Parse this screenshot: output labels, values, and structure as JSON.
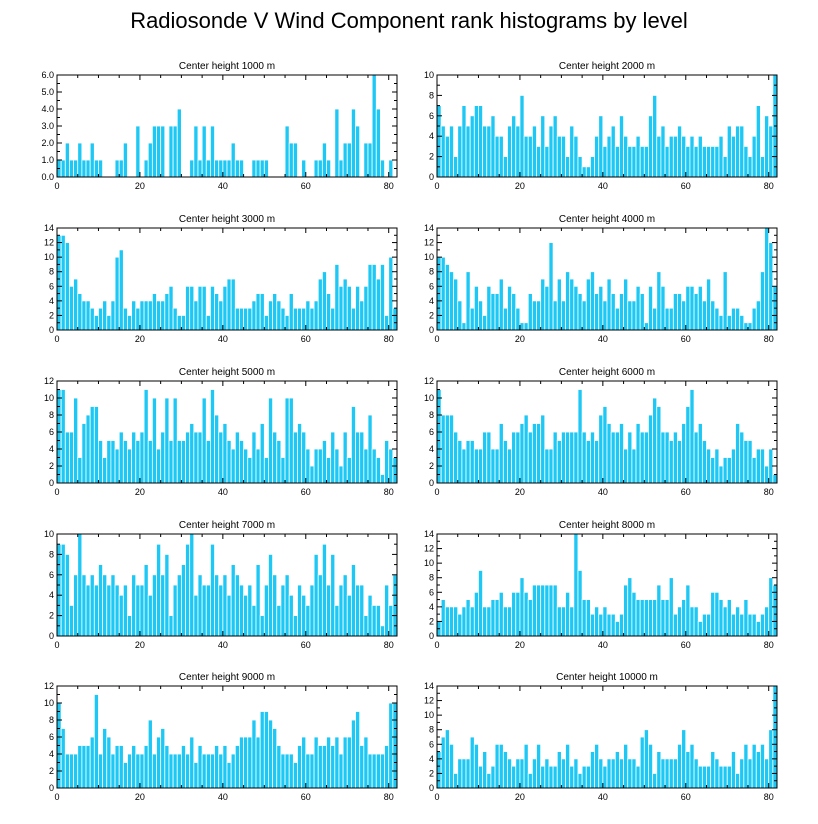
{
  "page_title": "Radiosonde V Wind Component rank histograms by level",
  "colors": {
    "bar_fill": "#1ec8f5",
    "bar_edge": "#ffffff",
    "axis": "#000000"
  },
  "chart_data": [
    {
      "type": "bar",
      "title": "Center height 1000 m",
      "xlim": [
        0,
        82
      ],
      "ylim": [
        0,
        6
      ],
      "x_ticks": [
        0,
        20,
        40,
        60,
        80
      ],
      "y_ticks": [
        "0.0",
        "1.0",
        "2.0",
        "3.0",
        "4.0",
        "5.0",
        "6.0"
      ],
      "values": [
        1,
        1,
        2,
        1,
        1,
        2,
        1,
        1,
        2,
        1,
        1,
        0,
        0,
        0,
        1,
        1,
        2,
        0,
        0,
        3,
        0,
        1,
        2,
        3,
        3,
        3,
        0,
        3,
        3,
        4,
        0,
        0,
        1,
        3,
        1,
        3,
        1,
        3,
        1,
        1,
        1,
        1,
        2,
        1,
        1,
        0,
        0,
        1,
        1,
        1,
        1,
        0,
        0,
        0,
        0,
        3,
        2,
        2,
        0,
        1,
        0,
        0,
        1,
        1,
        2,
        1,
        0,
        4,
        1,
        2,
        2,
        4,
        3,
        0,
        2,
        2,
        6,
        4,
        1,
        0,
        1,
        0
      ]
    },
    {
      "type": "bar",
      "title": "Center height 2000 m",
      "xlim": [
        0,
        82
      ],
      "ylim": [
        0,
        10
      ],
      "x_ticks": [
        0,
        20,
        40,
        60,
        80
      ],
      "y_ticks": [
        "0",
        "2",
        "4",
        "6",
        "8",
        "10"
      ],
      "values": [
        7,
        5,
        4,
        5,
        2,
        5,
        7,
        5,
        6,
        7,
        7,
        5,
        5,
        6,
        4,
        4,
        2,
        5,
        6,
        5,
        8,
        4,
        4,
        5,
        3,
        6,
        3,
        5,
        6,
        4,
        4,
        2,
        5,
        4,
        2,
        1,
        1,
        2,
        4,
        6,
        3,
        4,
        5,
        3,
        6,
        4,
        3,
        3,
        4,
        3,
        3,
        6,
        8,
        4,
        5,
        3,
        4,
        4,
        5,
        4,
        3,
        4,
        3,
        4,
        3,
        3,
        3,
        3,
        4,
        2,
        5,
        4,
        5,
        5,
        3,
        2,
        4,
        7,
        2,
        6,
        5,
        10
      ]
    },
    {
      "type": "bar",
      "title": "Center height 3000 m",
      "xlim": [
        0,
        82
      ],
      "ylim": [
        0,
        14
      ],
      "x_ticks": [
        0,
        20,
        40,
        60,
        80
      ],
      "y_ticks": [
        "0",
        "2",
        "4",
        "6",
        "8",
        "10",
        "12",
        "14"
      ],
      "values": [
        13,
        13,
        12,
        6,
        7,
        5,
        4,
        4,
        3,
        2,
        3,
        4,
        2,
        4,
        10,
        11,
        3,
        2,
        4,
        3,
        4,
        4,
        4,
        5,
        4,
        4,
        5,
        6,
        3,
        2,
        2,
        6,
        6,
        4,
        6,
        6,
        2,
        6,
        5,
        4,
        6,
        7,
        7,
        3,
        3,
        3,
        3,
        4,
        5,
        5,
        2,
        4,
        5,
        4,
        3,
        2,
        5,
        3,
        3,
        3,
        4,
        3,
        4,
        7,
        8,
        5,
        3,
        9,
        6,
        7,
        6,
        3,
        6,
        4,
        6,
        9,
        9,
        7,
        9,
        2,
        10,
        3
      ]
    },
    {
      "type": "bar",
      "title": "Center height 4000 m",
      "xlim": [
        0,
        82
      ],
      "ylim": [
        0,
        14
      ],
      "x_ticks": [
        0,
        20,
        40,
        60,
        80
      ],
      "y_ticks": [
        "0",
        "2",
        "4",
        "6",
        "8",
        "10",
        "12",
        "14"
      ],
      "values": [
        10,
        10,
        9,
        8,
        7,
        4,
        1,
        8,
        3,
        6,
        4,
        2,
        6,
        5,
        5,
        7,
        3,
        6,
        5,
        3,
        1,
        1,
        5,
        4,
        4,
        7,
        6,
        12,
        4,
        7,
        4,
        8,
        7,
        6,
        5,
        4,
        7,
        8,
        5,
        6,
        4,
        7,
        5,
        3,
        5,
        7,
        4,
        4,
        6,
        5,
        1,
        6,
        3,
        8,
        6,
        3,
        3,
        5,
        5,
        4,
        6,
        6,
        5,
        6,
        4,
        7,
        4,
        3,
        2,
        8,
        2,
        3,
        3,
        2,
        1,
        1,
        3,
        4,
        8,
        14,
        12,
        6,
        4
      ]
    },
    {
      "type": "bar",
      "title": "Center height 5000 m",
      "xlim": [
        0,
        82
      ],
      "ylim": [
        0,
        12
      ],
      "x_ticks": [
        0,
        20,
        40,
        60,
        80
      ],
      "y_ticks": [
        "0",
        "2",
        "4",
        "6",
        "8",
        "10",
        "12"
      ],
      "values": [
        11,
        11,
        6,
        6,
        10,
        3,
        7,
        8,
        9,
        9,
        5,
        3,
        5,
        5,
        4,
        6,
        5,
        4,
        6,
        5,
        6,
        11,
        5,
        10,
        4,
        6,
        10,
        5,
        10,
        5,
        5,
        6,
        7,
        6,
        6,
        10,
        5,
        11,
        8,
        6,
        7,
        5,
        4,
        6,
        5,
        4,
        3,
        6,
        4,
        7,
        3,
        10,
        6,
        5,
        3,
        10,
        10,
        6,
        7,
        6,
        4,
        2,
        4,
        4,
        5,
        3,
        6,
        4,
        2,
        6,
        3,
        9,
        6,
        6,
        4,
        8,
        4,
        3,
        1,
        5,
        4,
        3
      ]
    },
    {
      "type": "bar",
      "title": "Center height 6000 m",
      "xlim": [
        0,
        82
      ],
      "ylim": [
        0,
        12
      ],
      "x_ticks": [
        0,
        20,
        40,
        60,
        80
      ],
      "y_ticks": [
        "0",
        "2",
        "4",
        "6",
        "8",
        "10",
        "12"
      ],
      "values": [
        11,
        8,
        8,
        8,
        6,
        5,
        4,
        5,
        5,
        4,
        4,
        6,
        6,
        4,
        4,
        7,
        5,
        4,
        6,
        6,
        7,
        8,
        6,
        7,
        7,
        8,
        4,
        4,
        6,
        5,
        6,
        6,
        6,
        6,
        11,
        6,
        5,
        6,
        5,
        8,
        9,
        7,
        6,
        6,
        7,
        4,
        6,
        4,
        7,
        6,
        6,
        8,
        10,
        9,
        6,
        6,
        5,
        6,
        5,
        7,
        9,
        11,
        6,
        7,
        5,
        4,
        3,
        4,
        2,
        3,
        3,
        4,
        7,
        6,
        5,
        5,
        3,
        4,
        4,
        2,
        4,
        1,
        1
      ]
    },
    {
      "type": "bar",
      "title": "Center height 7000 m",
      "xlim": [
        0,
        82
      ],
      "ylim": [
        0,
        10
      ],
      "x_ticks": [
        0,
        20,
        40,
        60,
        80
      ],
      "y_ticks": [
        "0",
        "2",
        "4",
        "6",
        "8",
        "10"
      ],
      "values": [
        9,
        9,
        8,
        3,
        6,
        10,
        6,
        5,
        6,
        5,
        7,
        6,
        5,
        6,
        5,
        4,
        5,
        2,
        6,
        5,
        5,
        7,
        4,
        6,
        9,
        6,
        8,
        2,
        5,
        6,
        7,
        9,
        10,
        4,
        6,
        5,
        5,
        9,
        6,
        5,
        6,
        4,
        7,
        6,
        5,
        4,
        5,
        3,
        7,
        2,
        5,
        8,
        6,
        3,
        5,
        6,
        4,
        2,
        5,
        4,
        3,
        5,
        8,
        6,
        9,
        5,
        8,
        3,
        5,
        6,
        4,
        7,
        5,
        5,
        2,
        4,
        3,
        3,
        1,
        5,
        3,
        6,
        5
      ]
    },
    {
      "type": "bar",
      "title": "Center height 8000 m",
      "xlim": [
        0,
        82
      ],
      "ylim": [
        0,
        14
      ],
      "x_ticks": [
        0,
        20,
        40,
        60,
        80
      ],
      "y_ticks": [
        "0",
        "2",
        "4",
        "6",
        "8",
        "10",
        "12",
        "14"
      ],
      "values": [
        2,
        5,
        4,
        4,
        4,
        3,
        4,
        5,
        4,
        6,
        9,
        4,
        4,
        5,
        5,
        6,
        4,
        4,
        6,
        6,
        8,
        6,
        5,
        7,
        7,
        7,
        7,
        7,
        7,
        4,
        4,
        6,
        4,
        14,
        9,
        5,
        5,
        3,
        4,
        3,
        4,
        3,
        3,
        2,
        3,
        7,
        8,
        6,
        5,
        5,
        5,
        5,
        5,
        7,
        5,
        5,
        8,
        3,
        4,
        5,
        7,
        4,
        4,
        2,
        3,
        3,
        6,
        6,
        5,
        4,
        5,
        3,
        4,
        3,
        5,
        3,
        3,
        2,
        3,
        4,
        8,
        7
      ]
    },
    {
      "type": "bar",
      "title": "Center height 9000 m",
      "xlim": [
        0,
        82
      ],
      "ylim": [
        0,
        12
      ],
      "x_ticks": [
        0,
        20,
        40,
        60,
        80
      ],
      "y_ticks": [
        "0",
        "2",
        "4",
        "6",
        "8",
        "10",
        "12"
      ],
      "values": [
        10,
        7,
        4,
        4,
        4,
        5,
        5,
        5,
        6,
        11,
        4,
        7,
        6,
        4,
        5,
        5,
        3,
        4,
        5,
        4,
        4,
        5,
        8,
        4,
        6,
        7,
        5,
        4,
        4,
        4,
        5,
        4,
        6,
        3,
        5,
        4,
        4,
        4,
        5,
        4,
        5,
        3,
        4,
        5,
        6,
        6,
        6,
        8,
        6,
        9,
        9,
        8,
        7,
        5,
        4,
        4,
        4,
        3,
        5,
        6,
        4,
        4,
        6,
        5,
        5,
        6,
        5,
        6,
        4,
        6,
        6,
        8,
        9,
        5,
        6,
        4,
        4,
        4,
        4,
        5,
        10,
        10,
        6,
        5
      ]
    },
    {
      "type": "bar",
      "title": "Center height 10000 m",
      "xlim": [
        0,
        82
      ],
      "ylim": [
        0,
        14
      ],
      "x_ticks": [
        0,
        20,
        40,
        60,
        80
      ],
      "y_ticks": [
        "0",
        "2",
        "4",
        "6",
        "8",
        "10",
        "12",
        "14"
      ],
      "values": [
        5,
        7,
        8,
        6,
        2,
        4,
        4,
        4,
        7,
        6,
        3,
        5,
        2,
        3,
        6,
        6,
        5,
        4,
        3,
        4,
        4,
        6,
        2,
        4,
        6,
        3,
        4,
        3,
        3,
        5,
        4,
        6,
        3,
        4,
        2,
        3,
        3,
        5,
        6,
        4,
        3,
        4,
        4,
        5,
        4,
        6,
        4,
        4,
        3,
        7,
        8,
        6,
        2,
        5,
        4,
        4,
        4,
        4,
        6,
        8,
        5,
        6,
        4,
        3,
        3,
        3,
        5,
        4,
        3,
        3,
        3,
        5,
        2,
        4,
        6,
        4,
        6,
        5,
        6,
        4,
        8,
        14,
        12,
        14
      ]
    }
  ]
}
